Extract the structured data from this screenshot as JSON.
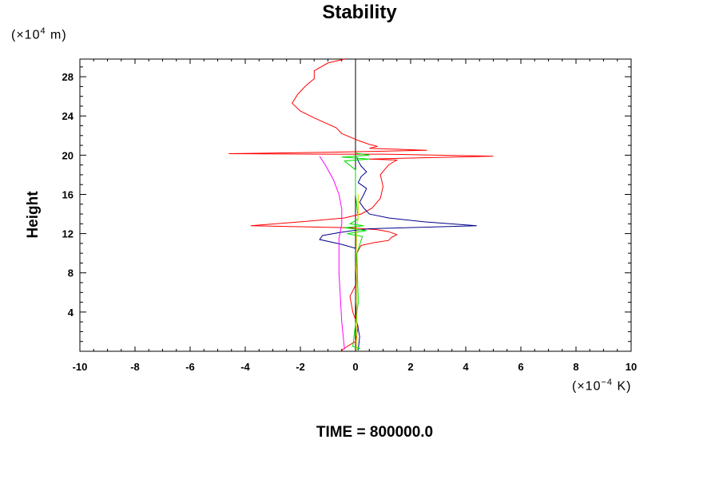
{
  "chart_data": {
    "type": "line",
    "title": "Stability",
    "ylabel": "Height",
    "y_unit": {
      "pre": "(×10",
      "exp": "4",
      "post": " m)"
    },
    "x_unit": {
      "pre": "(×10",
      "exp": "−4",
      "post": " K)"
    },
    "xlim": [
      -10,
      10
    ],
    "ylim": [
      0,
      29.8
    ],
    "x_ticks": [
      -10,
      -8,
      -6,
      -4,
      -2,
      0,
      2,
      4,
      6,
      8,
      10
    ],
    "x_tick_labels": [
      "-10",
      "-8",
      "-6",
      "-4",
      "-2",
      "0",
      "2",
      "4",
      "6",
      "8",
      "10"
    ],
    "y_ticks": [
      4,
      8,
      12,
      16,
      20,
      24,
      28
    ],
    "y_tick_labels": [
      "4",
      "8",
      "12",
      "16",
      "20",
      "24",
      "28"
    ],
    "grid": false,
    "reference_line_x": 0,
    "series": [
      {
        "color": "#ff0000",
        "points": [
          [
            -0.5,
            0.1
          ],
          [
            -0.3,
            0.5
          ],
          [
            0,
            1.0
          ],
          [
            0.1,
            2.5
          ],
          [
            -0.1,
            4.0
          ],
          [
            -0.2,
            5.6
          ],
          [
            0.05,
            7.0
          ],
          [
            0,
            8.5
          ],
          [
            0.05,
            10.0
          ],
          [
            0.2,
            10.8
          ],
          [
            0.7,
            11.1
          ],
          [
            1.2,
            11.3
          ],
          [
            1.3,
            11.6
          ],
          [
            1.5,
            11.9
          ],
          [
            1.2,
            12.2
          ],
          [
            0.8,
            12.4
          ],
          [
            -0.2,
            12.6
          ],
          [
            -3.8,
            12.8
          ],
          [
            -2.0,
            13.2
          ],
          [
            -0.4,
            13.6
          ],
          [
            0.2,
            14.0
          ],
          [
            0.6,
            14.6
          ],
          [
            0.9,
            15.6
          ],
          [
            1.0,
            16.8
          ],
          [
            0.9,
            18.0
          ],
          [
            1.2,
            19.0
          ],
          [
            1.5,
            19.5
          ],
          [
            0.5,
            19.6
          ],
          [
            2.0,
            19.7
          ],
          [
            5.0,
            19.9
          ],
          [
            1.0,
            20.1
          ],
          [
            -1.0,
            20.1
          ],
          [
            -4.6,
            20.15
          ],
          [
            -1.0,
            20.3
          ],
          [
            1.0,
            20.4
          ],
          [
            2.6,
            20.5
          ],
          [
            0.5,
            20.7
          ],
          [
            0.8,
            20.9
          ],
          [
            0.5,
            21.1
          ],
          [
            0.1,
            21.5
          ],
          [
            -0.5,
            22.2
          ],
          [
            -0.7,
            22.8
          ],
          [
            -1.5,
            23.8
          ],
          [
            -2.0,
            24.5
          ],
          [
            -2.3,
            25.3
          ],
          [
            -2.1,
            26.2
          ],
          [
            -1.8,
            27.1
          ],
          [
            -1.5,
            27.8
          ],
          [
            -1.5,
            28.6
          ],
          [
            -1.0,
            29.4
          ],
          [
            -0.4,
            29.8
          ]
        ]
      },
      {
        "color": "#00008b",
        "points": [
          [
            0.1,
            0.1
          ],
          [
            0.15,
            1.5
          ],
          [
            0.05,
            3.0
          ],
          [
            0,
            5.0
          ],
          [
            0,
            7.0
          ],
          [
            0.05,
            9.0
          ],
          [
            0,
            10.5
          ],
          [
            -0.5,
            10.9
          ],
          [
            -1.3,
            11.4
          ],
          [
            -1.2,
            11.8
          ],
          [
            -0.6,
            12.1
          ],
          [
            -0.1,
            12.3
          ],
          [
            0.5,
            12.5
          ],
          [
            4.4,
            12.8
          ],
          [
            2.5,
            13.2
          ],
          [
            1.2,
            13.6
          ],
          [
            0.5,
            14.0
          ],
          [
            0.3,
            14.6
          ],
          [
            0.15,
            15.2
          ],
          [
            0.3,
            16.0
          ],
          [
            0.4,
            16.6
          ],
          [
            0.1,
            17.2
          ],
          [
            0.2,
            17.8
          ],
          [
            0.4,
            18.3
          ],
          [
            0.2,
            18.9
          ],
          [
            0.1,
            19.4
          ],
          [
            0.05,
            19.8
          ]
        ]
      },
      {
        "color": "#00e000",
        "points": [
          [
            0,
            0.1
          ],
          [
            0.15,
            0.3
          ],
          [
            -0.1,
            0.5
          ],
          [
            0.1,
            5.0
          ],
          [
            0.05,
            10.0
          ],
          [
            0.25,
            11.7
          ],
          [
            -0.3,
            12.0
          ],
          [
            0.4,
            12.3
          ],
          [
            -0.4,
            12.6
          ],
          [
            0.3,
            12.8
          ],
          [
            -0.2,
            13.0
          ],
          [
            0.1,
            13.5
          ],
          [
            0,
            16.0
          ],
          [
            0,
            18.5
          ],
          [
            -0.4,
            19.4
          ],
          [
            0.5,
            19.6
          ],
          [
            -0.5,
            19.8
          ],
          [
            0.5,
            20.0
          ],
          [
            0,
            20.2
          ]
        ]
      },
      {
        "color": "#ff00ff",
        "points": [
          [
            -0.4,
            0.2
          ],
          [
            -0.5,
            3.0
          ],
          [
            -0.6,
            8.0
          ],
          [
            -0.6,
            11.5
          ],
          [
            -0.5,
            13.0
          ],
          [
            -0.5,
            14.5
          ],
          [
            -0.6,
            16.0
          ],
          [
            -0.8,
            17.5
          ],
          [
            -1.1,
            19.0
          ],
          [
            -1.3,
            19.9
          ]
        ]
      },
      {
        "color": "#dddd00",
        "points": [
          [
            0.05,
            0.1
          ],
          [
            0.05,
            5.0
          ],
          [
            0.02,
            10.0
          ],
          [
            0.05,
            12.0
          ],
          [
            0.1,
            14.0
          ],
          [
            0.1,
            16.0
          ]
        ]
      }
    ],
    "annotation": "TIME = 800000.0"
  }
}
